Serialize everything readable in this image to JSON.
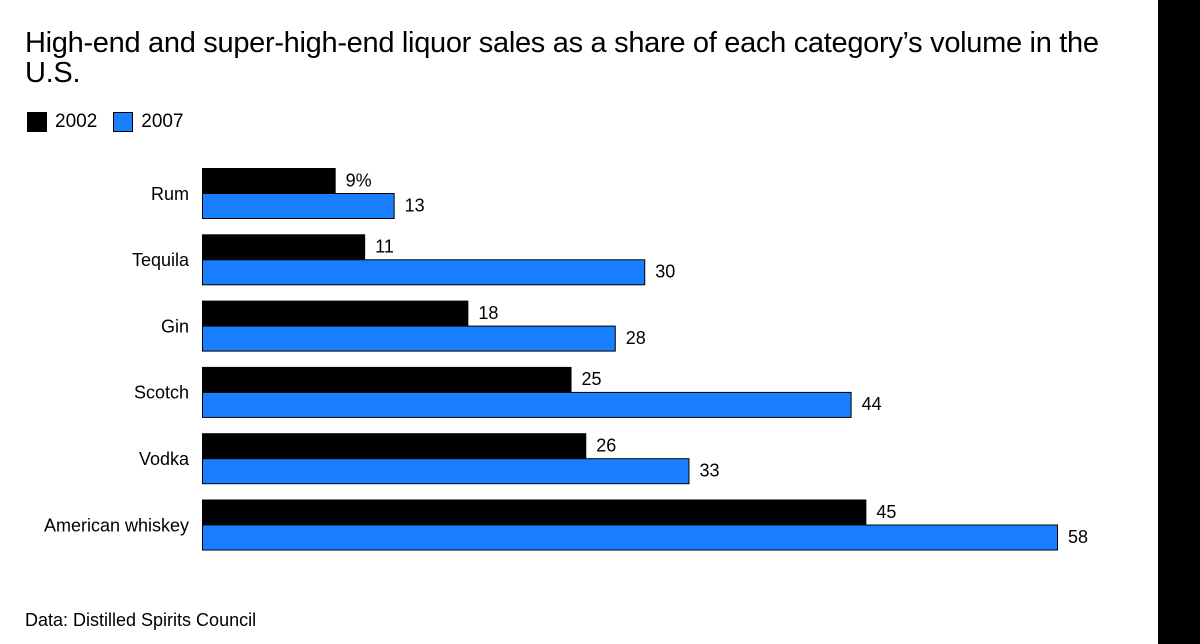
{
  "title": "High-end and super-high-end liquor sales as a share of each category’s volume in the U.S.",
  "source": "Data: Distilled Spirits Council",
  "colors": {
    "2002": "#000000",
    "2007": "#1a7fff"
  },
  "chart_data": {
    "type": "bar",
    "orientation": "horizontal",
    "title": "High-end and super-high-end liquor sales as a share of each category’s volume in the U.S.",
    "categories": [
      "Rum",
      "Tequila",
      "Gin",
      "Scotch",
      "Vodka",
      "American whiskey"
    ],
    "series": [
      {
        "name": "2002",
        "values": [
          9,
          11,
          18,
          25,
          26,
          45
        ],
        "labels": [
          "9%",
          "11",
          "18",
          "25",
          "26",
          "45"
        ]
      },
      {
        "name": "2007",
        "values": [
          13,
          30,
          28,
          44,
          33,
          58
        ],
        "labels": [
          "13",
          "30",
          "28",
          "44",
          "33",
          "58"
        ]
      }
    ],
    "xlim": [
      0,
      58
    ],
    "xlabel": "",
    "ylabel": "",
    "grid": false,
    "legend": "top-left"
  }
}
